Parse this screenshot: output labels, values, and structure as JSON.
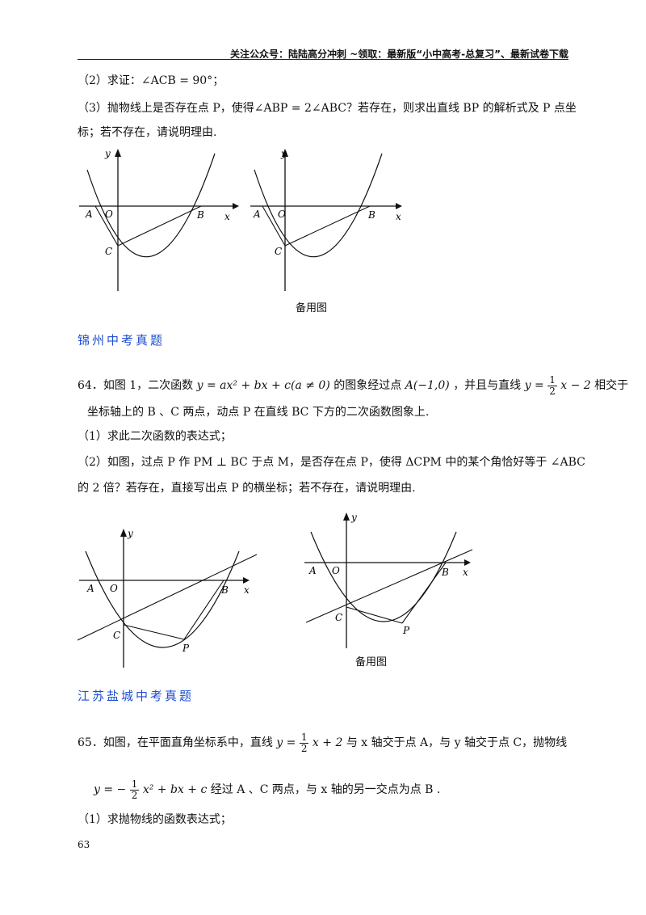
{
  "header": {
    "text": "关注公众号：陆陆高分冲刺  ~领取：最新版“小中高考-总复习”、最新试卷下载"
  },
  "q63": {
    "part2": "（2）求证：∠ACB = 90°；",
    "part3_line1": "（3）抛物线上是否存在点 P，使得∠ABP = 2∠ABC？若存在，则求出直线 BP 的解析式及 P 点坐",
    "part3_line2": "标；若不存在，请说明理由.",
    "figure_caption": "备用图"
  },
  "section1": {
    "title": "锦州中考真题"
  },
  "q64": {
    "line1_a": "64．如图 1，二次函数",
    "line1_func": "y = ax² + bx + c(a ≠ 0)",
    "line1_b": "的图象经过点",
    "line1_point": "A(−1,0)",
    "line1_c": "，并且与直线",
    "line1_line_pre": "y =",
    "line1_num": "1",
    "line1_den": "2",
    "line1_line_post": "x − 2",
    "line1_d": "相交于",
    "line2": "坐标轴上的 B 、C 两点，动点 P 在直线 BC 下方的二次函数图象上.",
    "part1": "（1）求此二次函数的表达式；",
    "part2_line1": "（2）如图，过点 P 作 PM ⊥ BC 于点 M，是否存在点 P，使得 ΔCPM 中的某个角恰好等于 ∠ABC",
    "part2_line2": "的 2 倍？若存在，直接写出点 P 的横坐标；若不存在，请说明理由.",
    "figure_caption": "备用图"
  },
  "section2": {
    "title": "江苏盐城中考真题"
  },
  "q65": {
    "line1_a": "65．如图，在平面直角坐标系中，直线",
    "line1_pre": "y =",
    "line1_num": "1",
    "line1_den": "2",
    "line1_post": "x + 2",
    "line1_b": "与 x 轴交于点 A，与 y 轴交于点 C，抛物线",
    "line2_pre": "y = −",
    "line2_num": "1",
    "line2_den": "2",
    "line2_post": "x² + bx + c",
    "line2_b": "经过 A 、C 两点，与 x 轴的另一交点为点 B .",
    "part1": "（1）求抛物线的函数表达式；"
  },
  "page_number": "63",
  "labels": {
    "y": "y",
    "x": "x",
    "A": "A",
    "O": "O",
    "B": "B",
    "C": "C",
    "P": "P"
  }
}
